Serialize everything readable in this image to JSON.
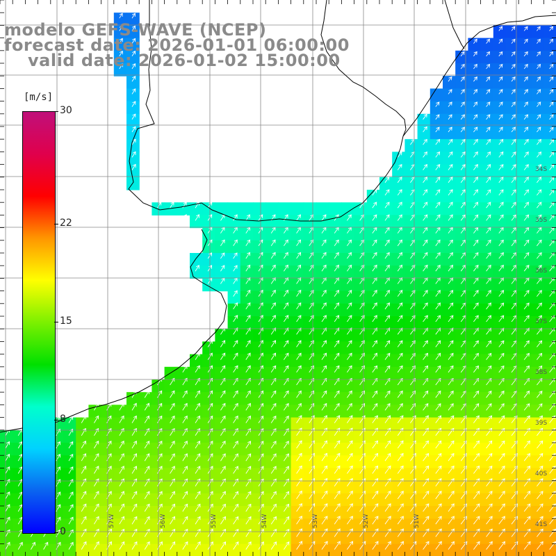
{
  "title": {
    "line1": "modelo GEFS-WAVE (NCEP)",
    "line2": "forecast date: 2026-01-01 06:00:00",
    "line3": "valid date: 2026-01-02 15:00:00"
  },
  "colorbar": {
    "unit": "[m/s]",
    "min": 0,
    "max": 30,
    "tick_labels": [
      "30",
      "22",
      "15",
      "8",
      "0"
    ],
    "tick_values": [
      30,
      22,
      15,
      8,
      0
    ],
    "colors": [
      "#0000ff",
      "#0a64f0",
      "#00d2ff",
      "#00ffcc",
      "#00e000",
      "#7cf000",
      "#ffff00",
      "#ff9600",
      "#ff0000",
      "#e0004c",
      "#c0107a"
    ]
  },
  "axes": {
    "lat_labels": [
      "34S",
      "35S",
      "36S",
      "37S",
      "38S",
      "39S",
      "40S",
      "41S"
    ],
    "lon_labels": [
      "57W",
      "56W",
      "55W",
      "54W",
      "53W",
      "52W",
      "51W"
    ]
  },
  "field": {
    "description_type": "wind speed with direction arrows",
    "dominant_direction": "northeast",
    "land_color": "#ffffff",
    "grid_color": "#888888",
    "arrow_color": "#ffffff"
  }
}
